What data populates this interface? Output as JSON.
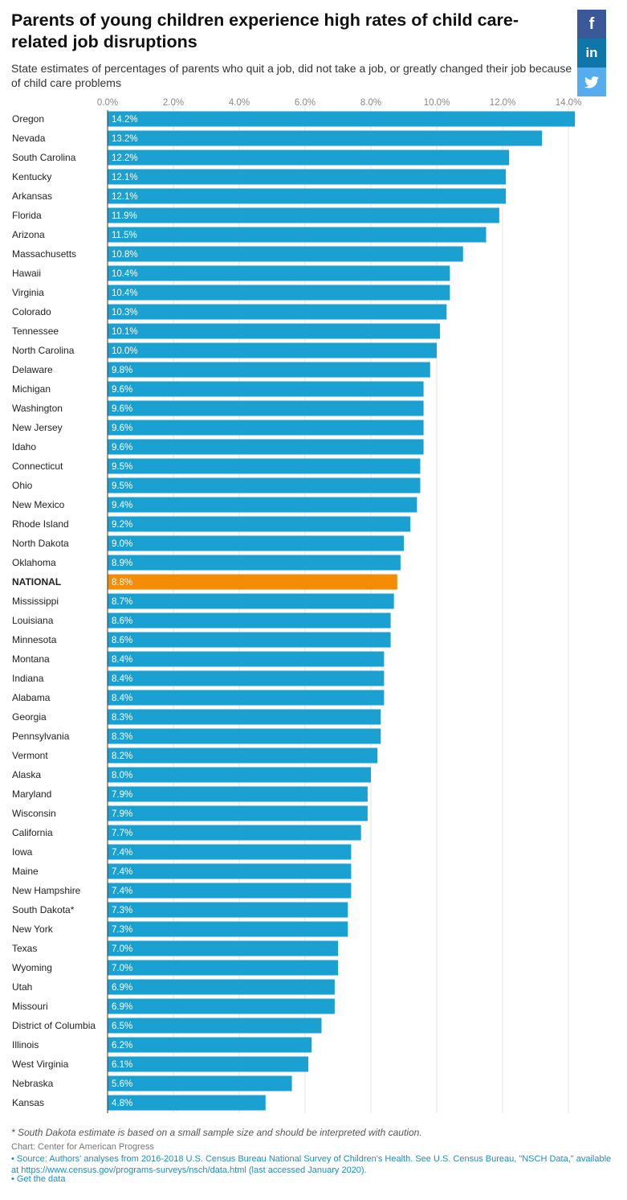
{
  "header": {
    "title": "Parents of young children experience high rates of child care-related job disruptions",
    "subtitle": "State estimates of percentages of parents who quit a job, did not take a job, or greatly changed their job because of child care problems"
  },
  "share": {
    "facebook": "f",
    "linkedin": "in",
    "twitter_icon": "twitter-icon"
  },
  "chart_data": {
    "type": "bar",
    "orientation": "horizontal",
    "xlim": [
      0,
      14
    ],
    "ticks": [
      "0.0%",
      "2.0%",
      "4.0%",
      "6.0%",
      "8.0%",
      "10.0%",
      "12.0%",
      "14.0%"
    ],
    "grid": true,
    "colors": {
      "bar": "#1ba1d1",
      "highlight": "#f48c06"
    },
    "highlight_category": "NATIONAL",
    "categories": [
      "Oregon",
      "Nevada",
      "South Carolina",
      "Kentucky",
      "Arkansas",
      "Florida",
      "Arizona",
      "Massachusetts",
      "Hawaii",
      "Virginia",
      "Colorado",
      "Tennessee",
      "North Carolina",
      "Delaware",
      "Michigan",
      "Washington",
      "New Jersey",
      "Idaho",
      "Connecticut",
      "Ohio",
      "New Mexico",
      "Rhode Island",
      "North Dakota",
      "Oklahoma",
      "NATIONAL",
      "Mississippi",
      "Louisiana",
      "Minnesota",
      "Montana",
      "Indiana",
      "Alabama",
      "Georgia",
      "Pennsylvania",
      "Vermont",
      "Alaska",
      "Maryland",
      "Wisconsin",
      "California",
      "Iowa",
      "Maine",
      "New Hampshire",
      "South Dakota*",
      "New York",
      "Texas",
      "Wyoming",
      "Utah",
      "Missouri",
      "District of Columbia",
      "Illinois",
      "West Virginia",
      "Nebraska",
      "Kansas"
    ],
    "values": [
      14.2,
      13.2,
      12.2,
      12.1,
      12.1,
      11.9,
      11.5,
      10.8,
      10.4,
      10.4,
      10.3,
      10.1,
      10.0,
      9.8,
      9.6,
      9.6,
      9.6,
      9.6,
      9.5,
      9.5,
      9.4,
      9.2,
      9.0,
      8.9,
      8.8,
      8.7,
      8.6,
      8.6,
      8.4,
      8.4,
      8.4,
      8.3,
      8.3,
      8.2,
      8.0,
      7.9,
      7.9,
      7.7,
      7.4,
      7.4,
      7.4,
      7.3,
      7.3,
      7.0,
      7.0,
      6.9,
      6.9,
      6.5,
      6.2,
      6.1,
      5.6,
      4.8
    ],
    "labels": [
      "14.2%",
      "13.2%",
      "12.2%",
      "12.1%",
      "12.1%",
      "11.9%",
      "11.5%",
      "10.8%",
      "10.4%",
      "10.4%",
      "10.3%",
      "10.1%",
      "10.0%",
      "9.8%",
      "9.6%",
      "9.6%",
      "9.6%",
      "9.6%",
      "9.5%",
      "9.5%",
      "9.4%",
      "9.2%",
      "9.0%",
      "8.9%",
      "8.8%",
      "8.7%",
      "8.6%",
      "8.6%",
      "8.4%",
      "8.4%",
      "8.4%",
      "8.3%",
      "8.3%",
      "8.2%",
      "8.0%",
      "7.9%",
      "7.9%",
      "7.7%",
      "7.4%",
      "7.4%",
      "7.4%",
      "7.3%",
      "7.3%",
      "7.0%",
      "7.0%",
      "6.9%",
      "6.9%",
      "6.5%",
      "6.2%",
      "6.1%",
      "5.6%",
      "4.8%"
    ]
  },
  "footer": {
    "footnote": "* South Dakota estimate is based on a small sample size and should be interpreted with caution.",
    "credit": "Chart: Center for American Progress",
    "source": "• Source: Authors' analyses from 2016-2018 U.S. Census Bureau National Survey of Children's Health. See U.S. Census Bureau, \"NSCH Data,\" available at https://www.census.gov/programs-surveys/nsch/data.html (last accessed January 2020).",
    "get_data": "• Get the data"
  }
}
